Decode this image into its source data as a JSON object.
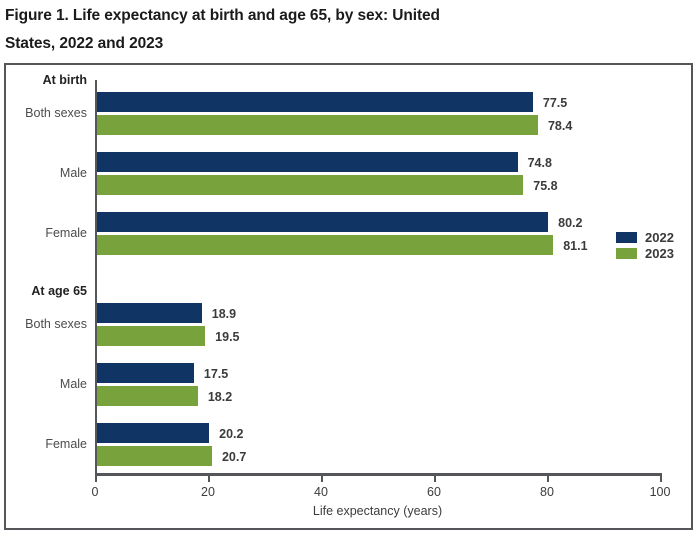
{
  "title": {
    "line1": "Figure 1. Life expectancy at birth and age 65, by sex: United",
    "line2": "States, 2022 and 2023"
  },
  "colors": {
    "bar_2022": "#103463",
    "bar_2023": "#77a23c",
    "frame_border": "#55565a",
    "axis": "#55565a",
    "title_text": "#1b1b1b",
    "label_text": "#3c3c3c"
  },
  "legend": {
    "items": [
      {
        "label": "2022",
        "color": "#103463"
      },
      {
        "label": "2023",
        "color": "#77a23c"
      }
    ]
  },
  "chart_data": {
    "type": "bar",
    "orientation": "horizontal",
    "title": "Figure 1. Life expectancy at birth and age 65, by sex: United States, 2022 and 2023",
    "xlabel": "Life expectancy (years)",
    "xlim": [
      0,
      100
    ],
    "xticks": [
      0,
      20,
      40,
      60,
      80,
      100
    ],
    "grid": false,
    "legend_position": "middle-right",
    "value_label_decimals": 1,
    "series": [
      {
        "name": "2022",
        "color": "#103463"
      },
      {
        "name": "2023",
        "color": "#77a23c"
      }
    ],
    "groups": [
      {
        "header": "At birth",
        "rows": [
          {
            "label": "Both sexes",
            "values": [
              77.5,
              78.4
            ]
          },
          {
            "label": "Male",
            "values": [
              74.8,
              75.8
            ]
          },
          {
            "label": "Female",
            "values": [
              80.2,
              81.1
            ]
          }
        ]
      },
      {
        "header": "At age 65",
        "rows": [
          {
            "label": "Both sexes",
            "values": [
              18.9,
              19.5
            ]
          },
          {
            "label": "Male",
            "values": [
              17.5,
              18.2
            ]
          },
          {
            "label": "Female",
            "values": [
              20.2,
              20.7
            ]
          }
        ]
      }
    ]
  }
}
